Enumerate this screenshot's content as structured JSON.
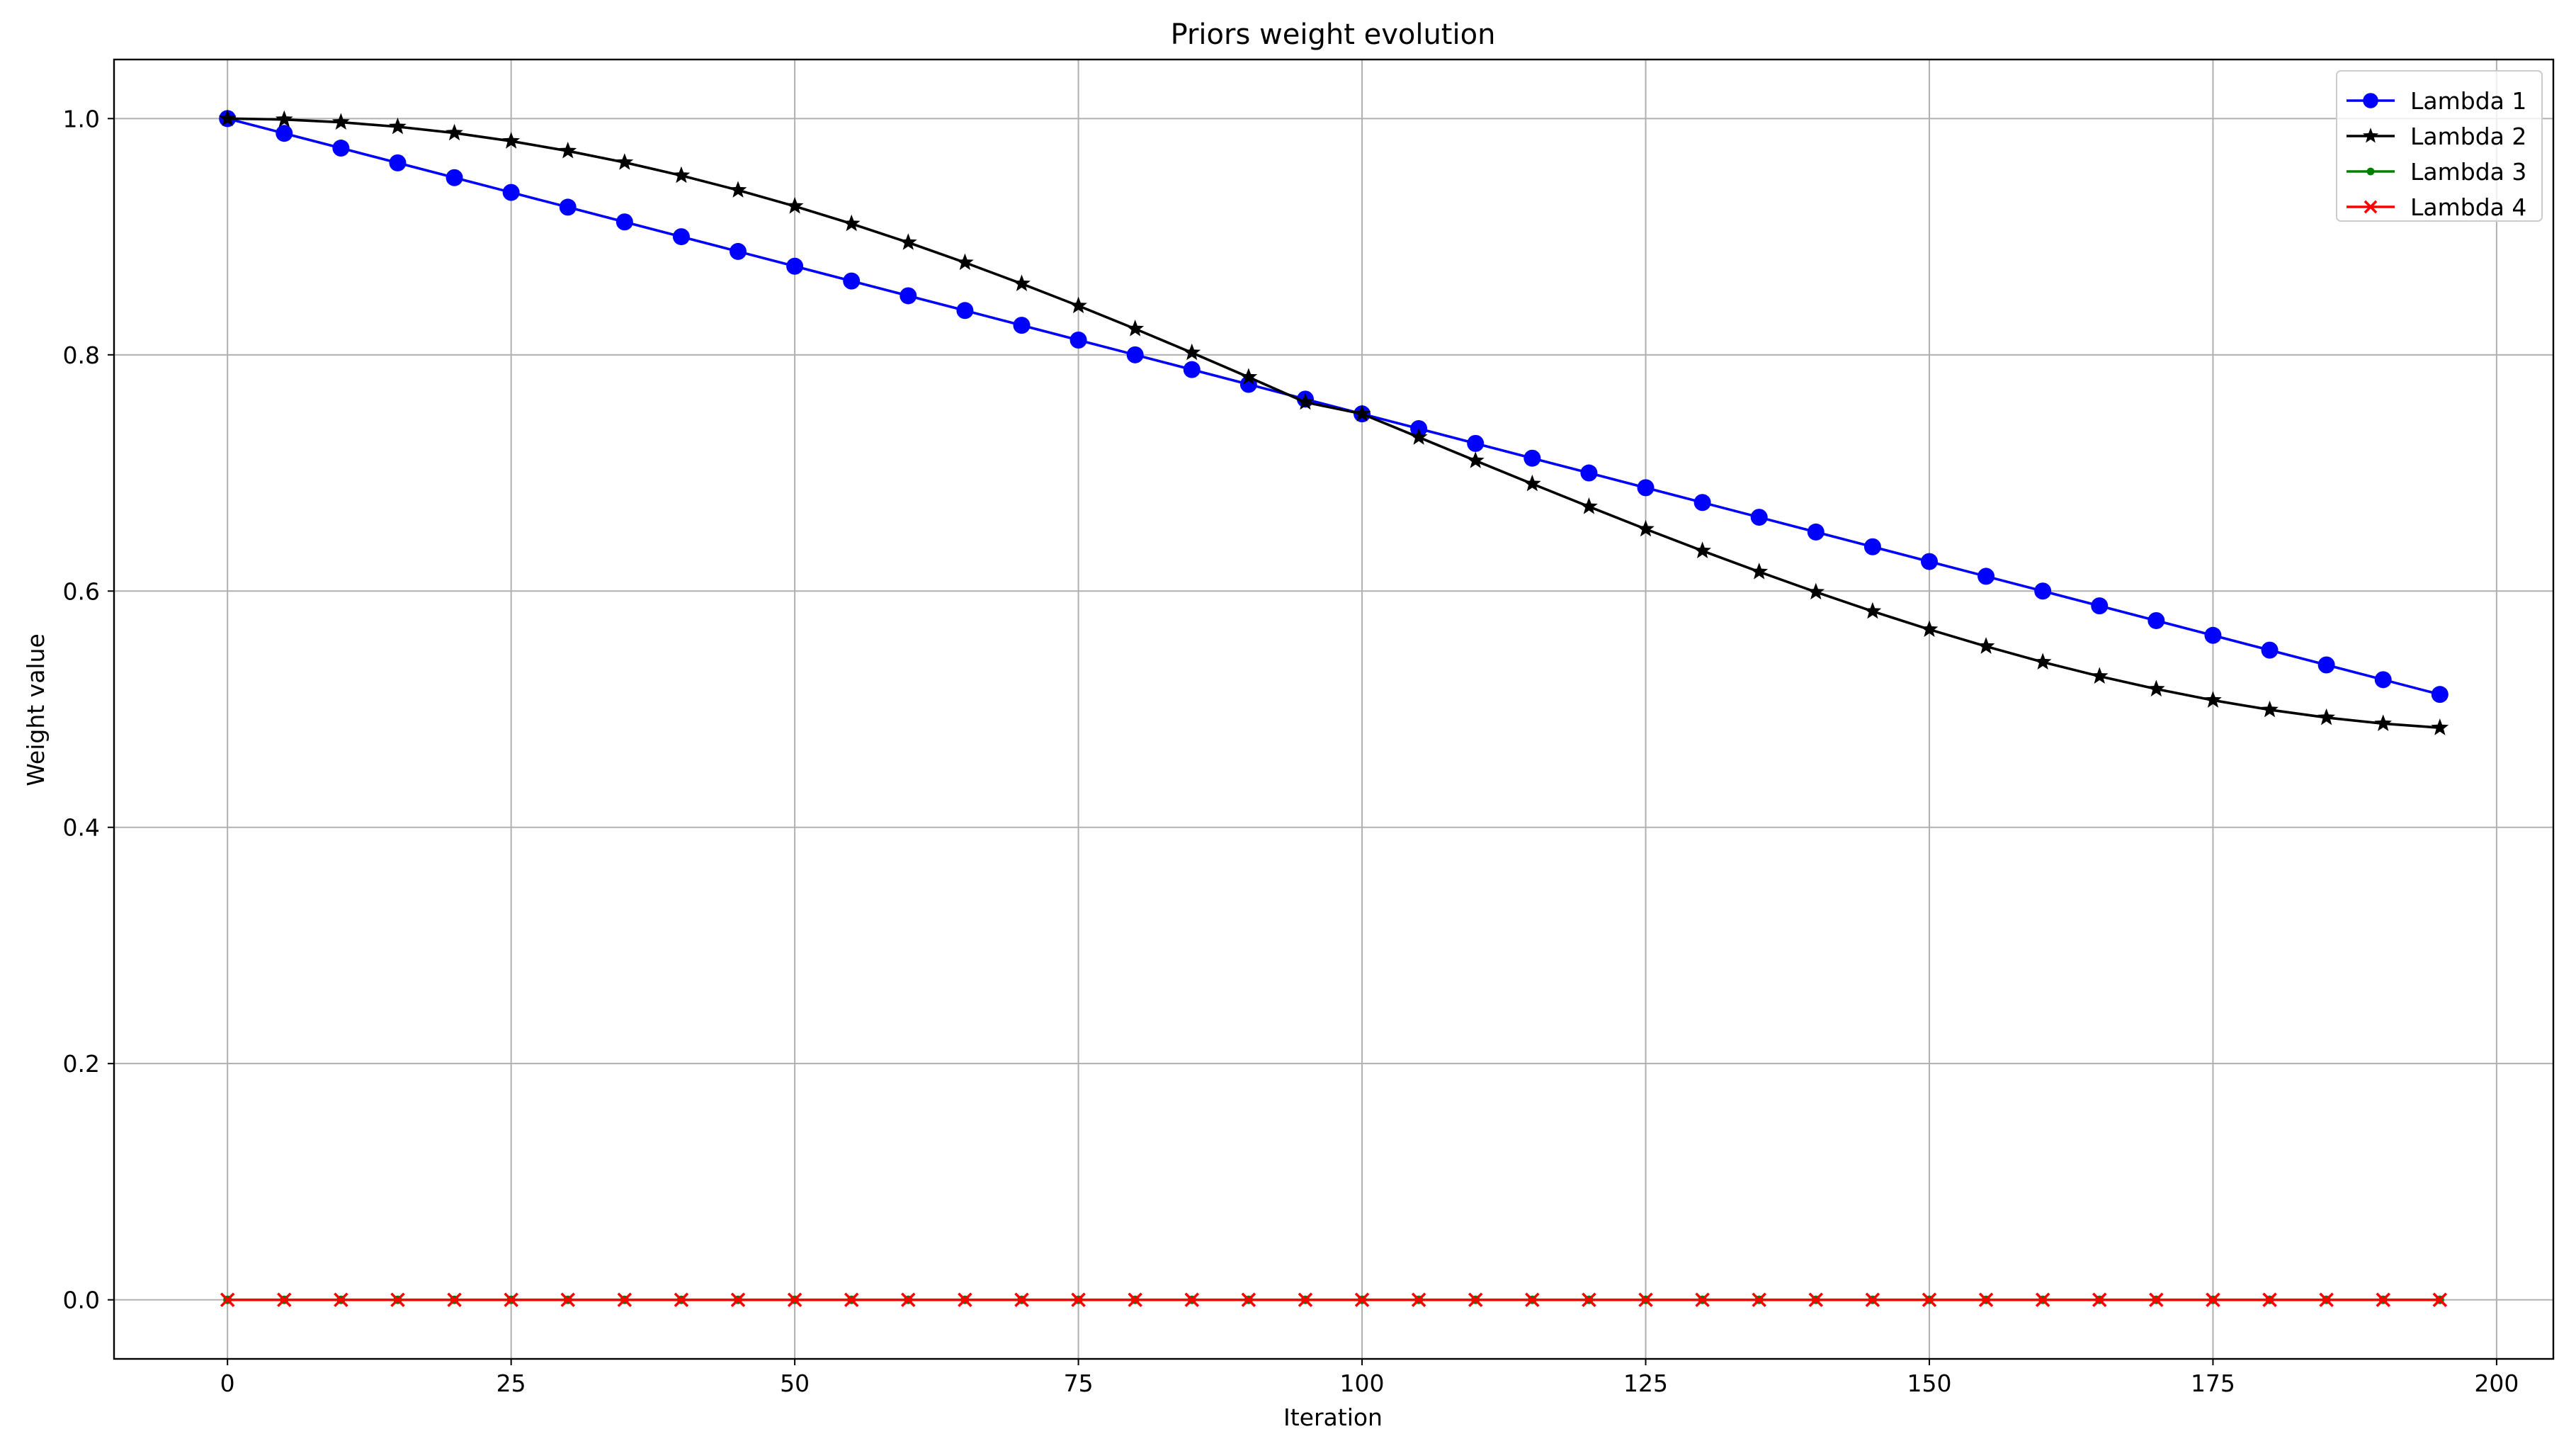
{
  "chart_data": {
    "type": "line",
    "title": "Priors weight evolution",
    "xlabel": "Iteration",
    "ylabel": "Weight value",
    "xlim": [
      -10,
      205
    ],
    "ylim": [
      -0.05,
      1.05
    ],
    "x_ticks": [
      0,
      25,
      50,
      75,
      100,
      125,
      150,
      175,
      200
    ],
    "x_tick_labels": [
      "0",
      "25",
      "50",
      "75",
      "100",
      "125",
      "150",
      "175",
      "200"
    ],
    "y_ticks": [
      0.0,
      0.2,
      0.4,
      0.6,
      0.8,
      1.0
    ],
    "y_tick_labels": [
      "0.0",
      "0.2",
      "0.4",
      "0.6",
      "0.8",
      "1.0"
    ],
    "grid": true,
    "legend_position": "top-right",
    "x": [
      0,
      5,
      10,
      15,
      20,
      25,
      30,
      35,
      40,
      45,
      50,
      55,
      60,
      65,
      70,
      75,
      80,
      85,
      90,
      95,
      100,
      105,
      110,
      115,
      120,
      125,
      130,
      135,
      140,
      145,
      150,
      155,
      160,
      165,
      170,
      175,
      180,
      185,
      190,
      195
    ],
    "series": [
      {
        "name": "Lambda 1",
        "color": "#0000ff",
        "marker": "circle",
        "values": [
          1.0,
          0.9875,
          0.975,
          0.9625,
          0.95,
          0.9375,
          0.925,
          0.9125,
          0.9,
          0.8875,
          0.875,
          0.8625,
          0.85,
          0.8375,
          0.825,
          0.8125,
          0.8,
          0.7875,
          0.775,
          0.7625,
          0.75,
          0.7375,
          0.725,
          0.7125,
          0.7,
          0.6875,
          0.675,
          0.6625,
          0.65,
          0.6375,
          0.625,
          0.6125,
          0.6,
          0.5875,
          0.575,
          0.5625,
          0.55,
          0.5375,
          0.525,
          0.5125
        ]
      },
      {
        "name": "Lambda 2",
        "color": "#000000",
        "marker": "star",
        "values": [
          1.0,
          0.9992,
          0.9969,
          0.9931,
          0.9878,
          0.9809,
          0.9726,
          0.9629,
          0.9518,
          0.9394,
          0.9258,
          0.911,
          0.8951,
          0.8781,
          0.8602,
          0.8415,
          0.822,
          0.8018,
          0.7811,
          0.7599,
          0.75,
          0.7302,
          0.7104,
          0.6908,
          0.6715,
          0.6525,
          0.6341,
          0.6163,
          0.5992,
          0.5829,
          0.5675,
          0.5532,
          0.5399,
          0.5279,
          0.5171,
          0.5076,
          0.4995,
          0.4929,
          0.4878,
          0.4843
        ]
      },
      {
        "name": "Lambda 3",
        "color": "#008000",
        "marker": "point",
        "values": [
          0,
          0,
          0,
          0,
          0,
          0,
          0,
          0,
          0,
          0,
          0,
          0,
          0,
          0,
          0,
          0,
          0,
          0,
          0,
          0,
          0,
          0,
          0,
          0,
          0,
          0,
          0,
          0,
          0,
          0,
          0,
          0,
          0,
          0,
          0,
          0,
          0,
          0,
          0,
          0
        ]
      },
      {
        "name": "Lambda 4",
        "color": "#ff0000",
        "marker": "x",
        "values": [
          0,
          0,
          0,
          0,
          0,
          0,
          0,
          0,
          0,
          0,
          0,
          0,
          0,
          0,
          0,
          0,
          0,
          0,
          0,
          0,
          0,
          0,
          0,
          0,
          0,
          0,
          0,
          0,
          0,
          0,
          0,
          0,
          0,
          0,
          0,
          0,
          0,
          0,
          0,
          0
        ]
      }
    ]
  }
}
